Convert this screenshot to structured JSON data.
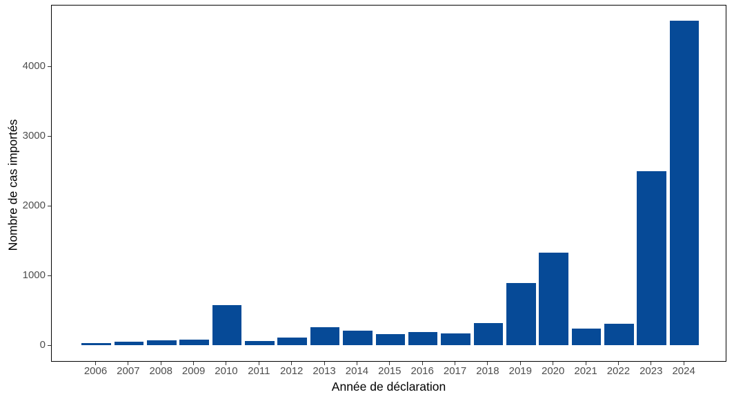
{
  "chart_data": {
    "type": "bar",
    "title": "",
    "xlabel": "Année de déclaration",
    "ylabel": "Nombre de cas importés",
    "categories": [
      "2006",
      "2007",
      "2008",
      "2009",
      "2010",
      "2011",
      "2012",
      "2013",
      "2014",
      "2015",
      "2016",
      "2017",
      "2018",
      "2019",
      "2020",
      "2021",
      "2022",
      "2023",
      "2024"
    ],
    "values": [
      25,
      50,
      65,
      80,
      570,
      55,
      110,
      260,
      210,
      160,
      190,
      170,
      320,
      890,
      1330,
      240,
      310,
      2500,
      4650
    ],
    "yticks": [
      0,
      1000,
      2000,
      3000,
      4000
    ],
    "ylim": [
      0,
      4870
    ],
    "grid": false,
    "legend": "none",
    "bar_color": "#064A97",
    "axis_text_color": "#4D4D4D",
    "axis_title_color": "#000000",
    "panel_border_color": "#000000",
    "background": "#FFFFFF"
  }
}
